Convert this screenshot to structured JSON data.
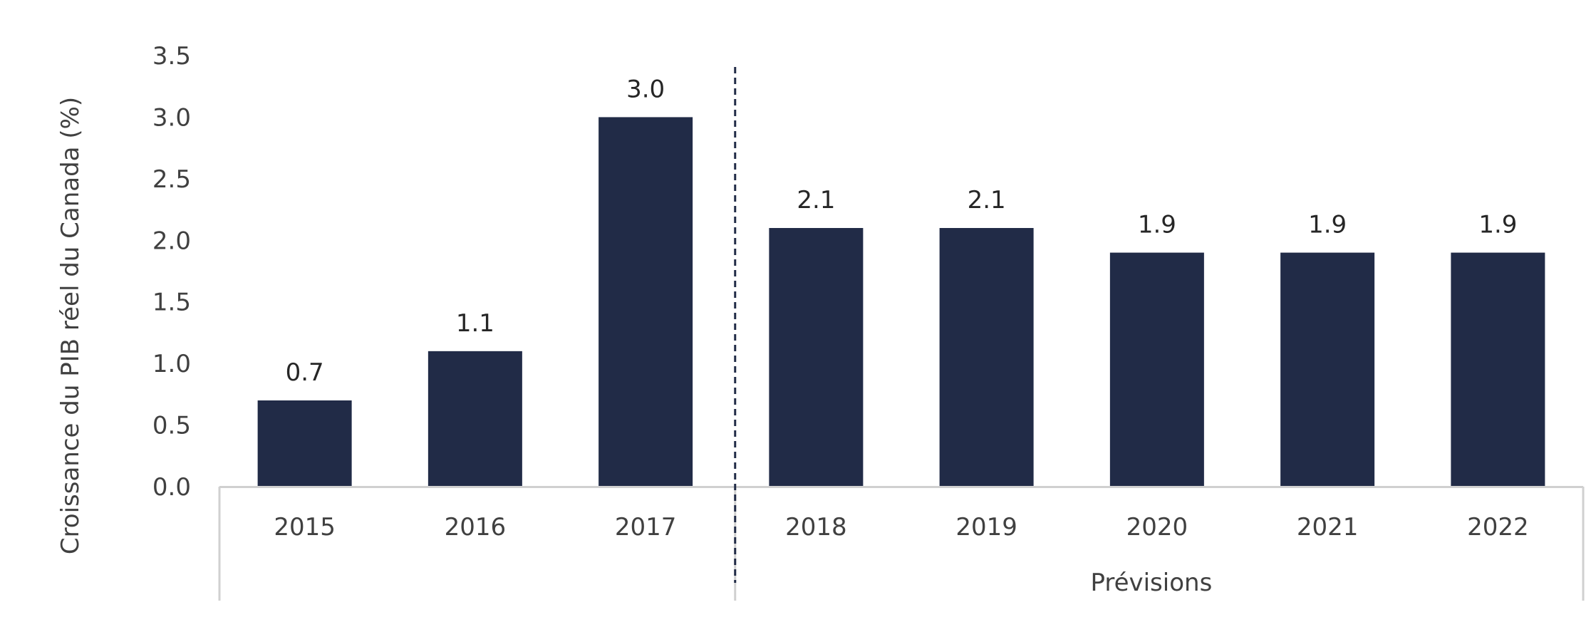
{
  "chart_data": {
    "type": "bar",
    "categories": [
      "2015",
      "2016",
      "2017",
      "2018",
      "2019",
      "2020",
      "2021",
      "2022"
    ],
    "values": [
      0.7,
      1.1,
      3.0,
      2.1,
      2.1,
      1.9,
      1.9,
      1.9
    ],
    "data_labels": [
      "0.7",
      "1.1",
      "3.0",
      "2.1",
      "2.1",
      "1.9",
      "1.9",
      "1.9"
    ],
    "ylabel": "Croissance du PIB réel du Canada (%)",
    "ylim": [
      0,
      3.5
    ],
    "yticks": [
      "0.0",
      "0.5",
      "1.0",
      "1.5",
      "2.0",
      "2.5",
      "3.0",
      "3.5"
    ],
    "ytick_values": [
      0,
      0.5,
      1.0,
      1.5,
      2.0,
      2.5,
      3.0,
      3.5
    ],
    "group_label": "Prévisions",
    "forecast_start_category": "2018",
    "bar_color": "#212b47",
    "divider_color": "#212b47",
    "grid": false
  }
}
